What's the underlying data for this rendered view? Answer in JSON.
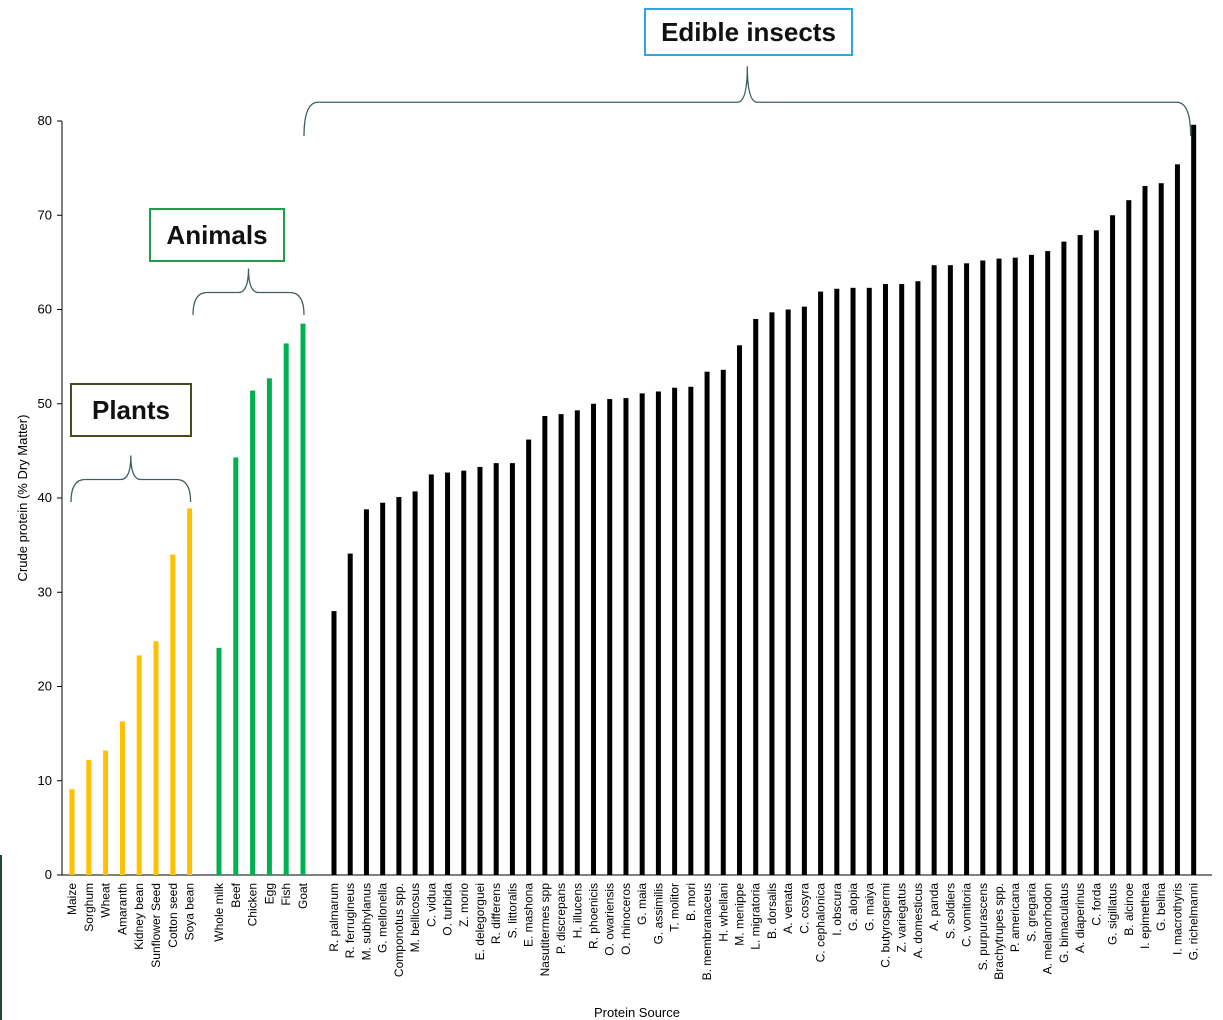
{
  "chart_data": {
    "type": "bar",
    "xlabel": "Protein Source",
    "ylabel": "Crude protein (% Dry Matter)",
    "ylim": [
      0,
      80
    ],
    "yticks": [
      0,
      10,
      20,
      30,
      40,
      50,
      60,
      70,
      80
    ],
    "grid": false,
    "legend": "none",
    "colors": {
      "plants": "#FFC000",
      "animals": "#00B050",
      "insects": "#000000"
    },
    "group_labels": {
      "plants": "Plants",
      "animals": "Animals",
      "insects": "Edible insects"
    },
    "groups": [
      {
        "key": "plants",
        "categories": [
          "Maize",
          "Sorghum",
          "Wheat",
          "Amaranth",
          "Kidney bean",
          "Sunflower Seed",
          "Cotton seed",
          "Soya bean"
        ],
        "values": [
          9.1,
          12.2,
          13.2,
          16.3,
          23.3,
          24.8,
          34.0,
          38.9
        ]
      },
      {
        "key": "animals",
        "categories": [
          "Whole milk",
          "Beef",
          "Chicken",
          "Egg",
          "Fish",
          "Goat"
        ],
        "values": [
          24.1,
          44.3,
          51.4,
          52.7,
          56.4,
          58.5
        ]
      },
      {
        "key": "insects",
        "categories": [
          "R. palmarum",
          "R. ferrugineus",
          "M. subhylanus",
          "G. mellonella",
          "Componotus spp.",
          "M. bellicosus",
          "C. vidua",
          "O. turbida",
          "Z. morio",
          "E. delegorguei",
          "R. differens",
          "S. littoralis",
          "E. mashona",
          "Nasutitermes spp",
          "P. discrepans",
          "H. illucens",
          "R. phoenicis",
          "O. owariensis",
          "O. rhinoceros",
          "G. maia",
          "G. assimilis",
          "T. molitor",
          "B. mori",
          "B. membranaceus",
          "H. whellani",
          "M. menippe",
          "L. migratoria",
          "B. dorsalis",
          "A. venata",
          "C. cosyra",
          "C. cephalonica",
          "I. obscura",
          "G. alopia",
          "G. maiya",
          "C. butyrospermi",
          "Z. variegatus",
          "A. domesticus",
          "A. panda",
          "S. soldiers",
          "C. vomitoria",
          "S. purpurascens",
          "Brachytrupes spp.",
          "P. americana",
          "S. gregaria",
          "A. melanorhodon",
          "G. bimaculatus",
          "A. diaperinus",
          "C. forda",
          "G. sigillatus",
          "B. alcinoe",
          "I. epimethea",
          "G. belina",
          "I. macrothyris",
          "G. richelmanni"
        ],
        "values": [
          28.0,
          34.1,
          38.8,
          39.5,
          40.1,
          40.7,
          42.5,
          42.7,
          42.9,
          43.3,
          43.7,
          43.7,
          46.2,
          48.7,
          48.9,
          49.3,
          50.0,
          50.5,
          50.6,
          51.1,
          51.3,
          51.7,
          51.8,
          53.4,
          53.6,
          56.2,
          59.0,
          59.7,
          60.0,
          60.3,
          61.9,
          62.2,
          62.3,
          62.3,
          62.7,
          62.7,
          63.0,
          64.7,
          64.7,
          64.9,
          65.2,
          65.4,
          65.5,
          65.8,
          66.2,
          67.2,
          67.9,
          68.4,
          70.0,
          71.6,
          73.1,
          73.4,
          75.4,
          79.6
        ]
      }
    ]
  }
}
